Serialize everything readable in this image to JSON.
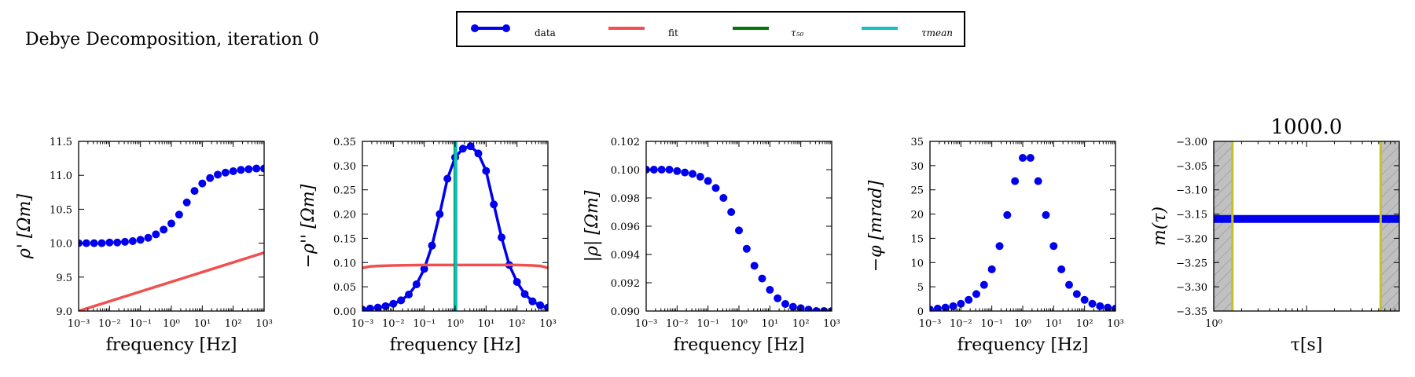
{
  "figure_title": "Debye Decomposition, iteration 0",
  "legend": {
    "placement": "top-center",
    "entries": [
      {
        "label": "data",
        "color": "#0000ee",
        "marker": "circle-line"
      },
      {
        "label": "fit",
        "color": "#f05050",
        "marker": "line"
      },
      {
        "label": "τ₅₀",
        "color": "#007700",
        "marker": "line"
      },
      {
        "label": "τmean",
        "color": "#10c0c0",
        "marker": "line"
      }
    ]
  },
  "colors": {
    "data": "#0000ee",
    "fit": "#f05050",
    "tau50": "#007700",
    "tau_mean": "#10c0c0",
    "hatch": "#c0c0c0",
    "limit": "#c8c020"
  },
  "chart_data": [
    {
      "type": "scatter",
      "id": "rho-real",
      "xlabel": "frequency [Hz]",
      "ylabel": "ρ' [Ωm]",
      "xscale": "log",
      "xlim": [
        0.001,
        1000
      ],
      "ylim": [
        9.0,
        11.5
      ],
      "xticks": [
        "10⁻³",
        "10⁻²",
        "10⁻¹",
        "10⁰",
        "10¹",
        "10²",
        "10³"
      ],
      "yticks": [
        "9.0",
        "9.5",
        "10.0",
        "10.5",
        "11.0",
        "11.5"
      ],
      "series": [
        {
          "role": "data",
          "style": "markers",
          "x": [
            0.001,
            0.00178,
            0.00316,
            0.00562,
            0.01,
            0.0178,
            0.0316,
            0.0562,
            0.1,
            0.178,
            0.316,
            0.562,
            1,
            1.78,
            3.16,
            5.62,
            10,
            17.8,
            31.6,
            56.2,
            100,
            178,
            316,
            562,
            1000
          ],
          "y": [
            10.0,
            10.0,
            10.0,
            10.0,
            10.01,
            10.01,
            10.02,
            10.03,
            10.05,
            10.08,
            10.13,
            10.2,
            10.29,
            10.42,
            10.6,
            10.77,
            10.88,
            10.96,
            11.01,
            11.04,
            11.06,
            11.08,
            11.09,
            11.1,
            11.1
          ]
        },
        {
          "role": "fit",
          "style": "line",
          "x": [
            0.001,
            1000
          ],
          "y": [
            9.0,
            9.86
          ]
        }
      ]
    },
    {
      "type": "line",
      "id": "rho-imag",
      "xlabel": "frequency [Hz]",
      "ylabel": "−ρ'' [Ωm]",
      "xscale": "log",
      "xlim": [
        0.001,
        1000
      ],
      "ylim": [
        0.0,
        0.35
      ],
      "xticks": [
        "10⁻³",
        "10⁻²",
        "10⁻¹",
        "10⁰",
        "10¹",
        "10²",
        "10³"
      ],
      "yticks": [
        "0.00",
        "0.05",
        "0.10",
        "0.15",
        "0.20",
        "0.25",
        "0.30",
        "0.35"
      ],
      "vlines": [
        {
          "role": "tau50",
          "x": 1.0
        },
        {
          "role": "tau_mean",
          "x": 1.05
        }
      ],
      "series": [
        {
          "role": "data",
          "style": "line-markers",
          "x": [
            0.001,
            0.00178,
            0.00316,
            0.00562,
            0.01,
            0.0178,
            0.0316,
            0.0562,
            0.1,
            0.178,
            0.316,
            0.562,
            1,
            1.78,
            3.16,
            5.62,
            10,
            17.8,
            31.6,
            56.2,
            100,
            178,
            316,
            562,
            1000
          ],
          "y": [
            0.003,
            0.005,
            0.007,
            0.01,
            0.015,
            0.022,
            0.034,
            0.055,
            0.087,
            0.135,
            0.2,
            0.273,
            0.317,
            0.335,
            0.34,
            0.325,
            0.289,
            0.22,
            0.152,
            0.095,
            0.06,
            0.035,
            0.02,
            0.012,
            0.007
          ]
        },
        {
          "role": "fit",
          "style": "line",
          "x": [
            0.001,
            0.00178,
            0.00316,
            0.01,
            0.1,
            1,
            10,
            100,
            316,
            562,
            1000
          ],
          "y": [
            0.089,
            0.092,
            0.093,
            0.094,
            0.095,
            0.095,
            0.095,
            0.095,
            0.094,
            0.093,
            0.089
          ]
        }
      ]
    },
    {
      "type": "scatter",
      "id": "rho-mag",
      "xlabel": "frequency [Hz]",
      "ylabel": "|ρ| [Ωm]",
      "xscale": "log",
      "xlim": [
        0.001,
        1000
      ],
      "ylim": [
        0.09,
        0.102
      ],
      "xticks": [
        "10⁻³",
        "10⁻²",
        "10⁻¹",
        "10⁰",
        "10¹",
        "10²",
        "10³"
      ],
      "yticks": [
        "0.090",
        "0.092",
        "0.094",
        "0.096",
        "0.098",
        "0.100",
        "0.102"
      ],
      "series": [
        {
          "role": "data",
          "style": "markers",
          "x": [
            0.001,
            0.00178,
            0.00316,
            0.00562,
            0.01,
            0.0178,
            0.0316,
            0.0562,
            0.1,
            0.178,
            0.316,
            0.562,
            1,
            1.78,
            3.16,
            5.62,
            10,
            17.8,
            31.6,
            56.2,
            100,
            178,
            316,
            562,
            1000
          ],
          "y": [
            0.1,
            0.1,
            0.1,
            0.1,
            0.0999,
            0.0998,
            0.0997,
            0.0995,
            0.0992,
            0.0987,
            0.098,
            0.097,
            0.0957,
            0.0944,
            0.0932,
            0.0923,
            0.0915,
            0.0909,
            0.0905,
            0.0903,
            0.0902,
            0.0901,
            0.09,
            0.09,
            0.09
          ]
        }
      ]
    },
    {
      "type": "scatter",
      "id": "phase",
      "xlabel": "frequency [Hz]",
      "ylabel": "−φ [mrad]",
      "xscale": "log",
      "xlim": [
        0.001,
        1000
      ],
      "ylim": [
        0,
        35
      ],
      "xticks": [
        "10⁻³",
        "10⁻²",
        "10⁻¹",
        "10⁰",
        "10¹",
        "10²",
        "10³"
      ],
      "yticks": [
        "0",
        "5",
        "10",
        "15",
        "20",
        "25",
        "30",
        "35"
      ],
      "series": [
        {
          "role": "data",
          "style": "markers",
          "x": [
            0.001,
            0.00178,
            0.00316,
            0.00562,
            0.01,
            0.0178,
            0.0316,
            0.0562,
            0.1,
            0.178,
            0.316,
            0.562,
            1,
            1.78,
            3.16,
            5.62,
            10,
            17.8,
            31.6,
            56.2,
            100,
            178,
            316,
            562,
            1000
          ],
          "y": [
            0.3,
            0.5,
            0.7,
            1.0,
            1.5,
            2.3,
            3.5,
            5.4,
            8.6,
            13.4,
            19.8,
            26.8,
            31.6,
            31.6,
            26.8,
            19.8,
            13.4,
            8.6,
            5.4,
            3.5,
            2.3,
            1.5,
            1.0,
            0.7,
            0.5
          ]
        }
      ]
    },
    {
      "type": "line",
      "id": "m-tau",
      "title": "1000.0",
      "xlabel": "τ[s]",
      "ylabel": "m(τ)",
      "xscale": "log",
      "xlim": [
        0.1,
        10
      ],
      "ylim": [
        -3.35,
        -3.0
      ],
      "xticks": [
        "10⁰"
      ],
      "yticks": [
        "−3.00",
        "−3.05",
        "−3.10",
        "−3.15",
        "−3.20",
        "−3.25",
        "−3.30",
        "−3.35"
      ],
      "shaded_regions": [
        [
          0.1,
          0.159
        ],
        [
          6.3,
          10
        ]
      ],
      "vlines": [
        {
          "role": "limit",
          "x": 0.159
        },
        {
          "role": "limit",
          "x": 6.3
        }
      ],
      "series": [
        {
          "role": "data",
          "style": "thick-line",
          "x": [
            0.1,
            10
          ],
          "y": [
            -3.16,
            -3.16
          ]
        }
      ]
    }
  ]
}
